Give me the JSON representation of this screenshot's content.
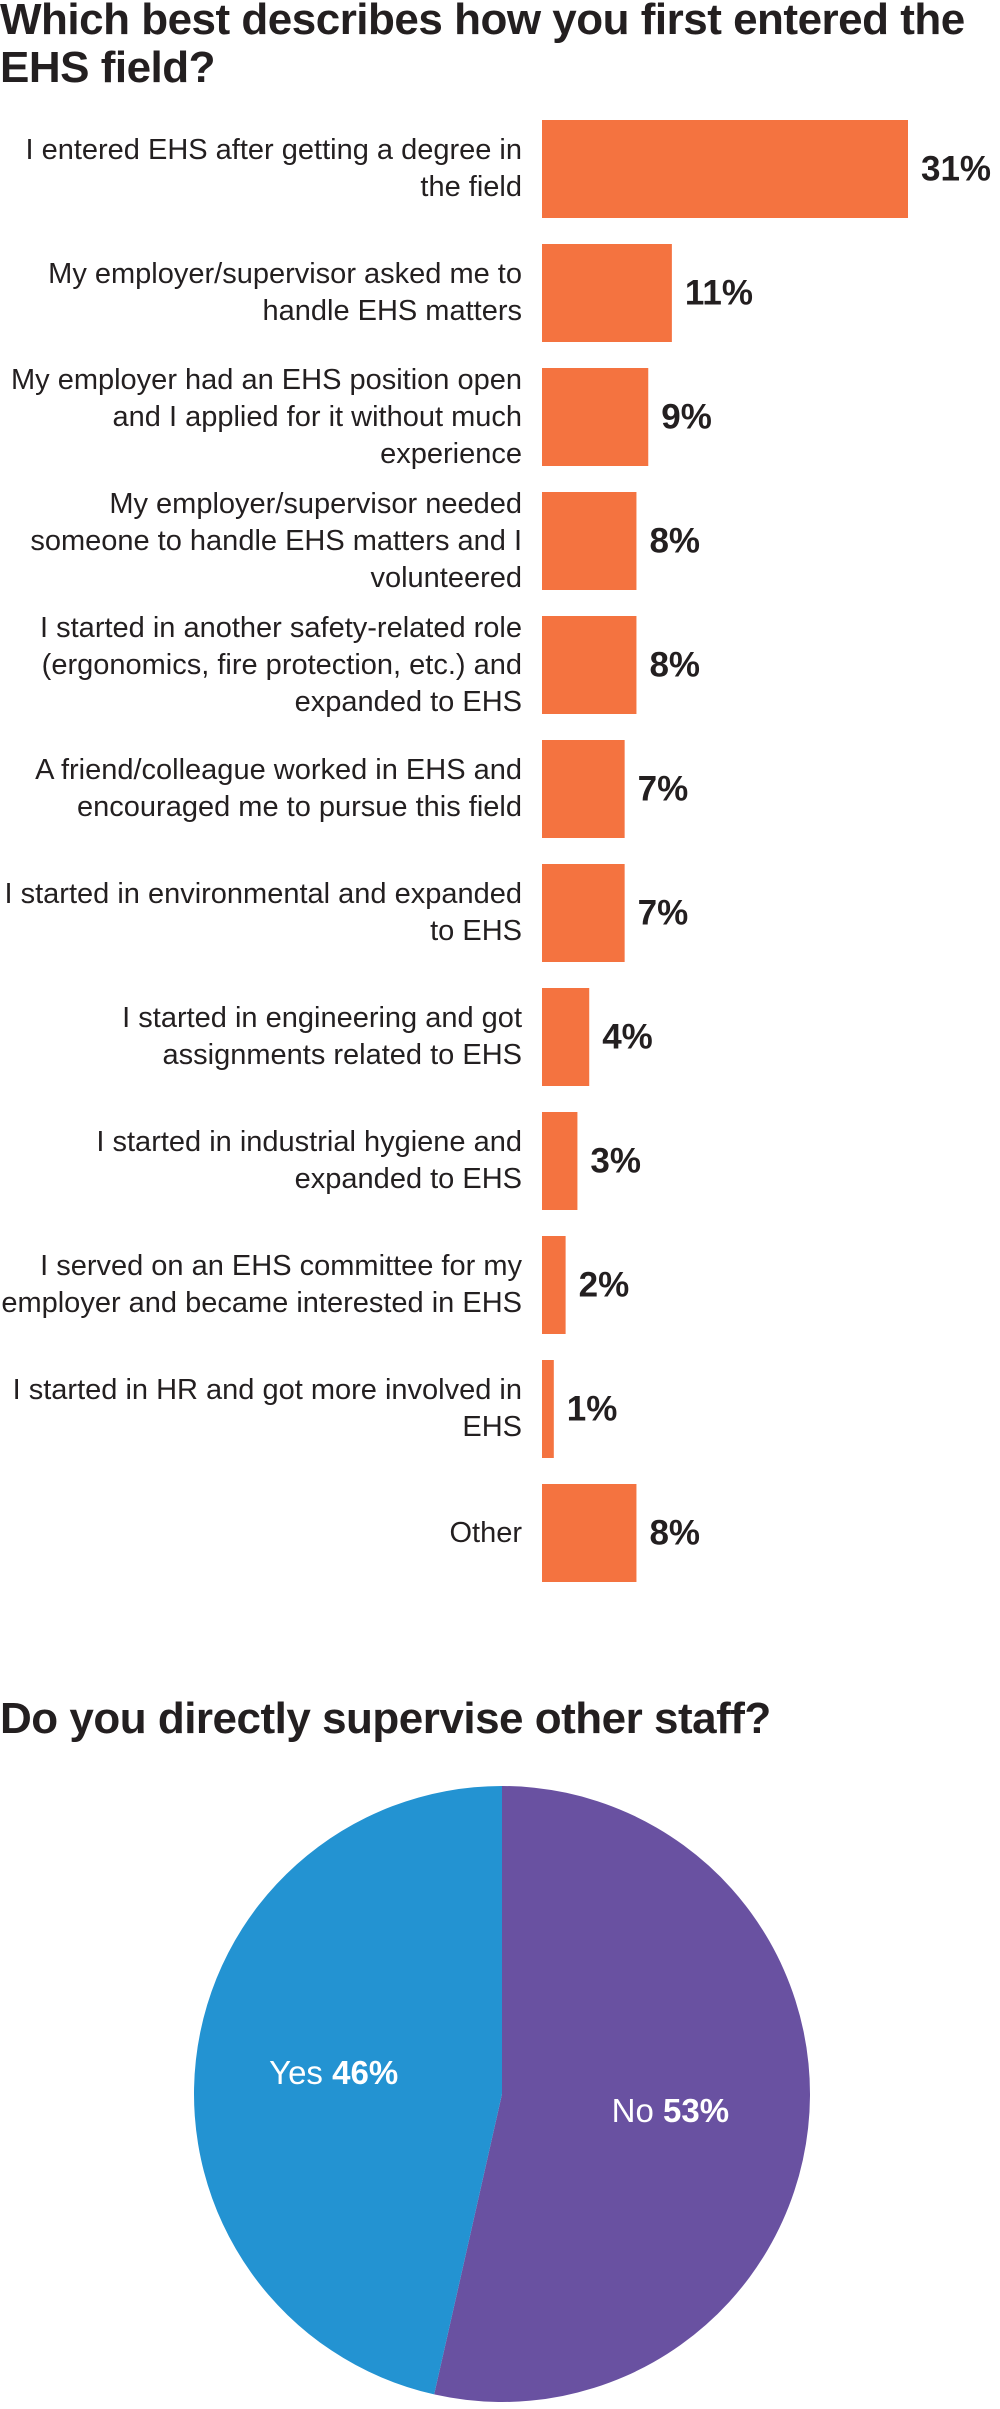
{
  "chart_data": [
    {
      "type": "bar",
      "orientation": "horizontal",
      "title": "Which best describes how you first entered the EHS field?",
      "categories": [
        "I entered EHS after getting a degree in the field",
        "My employer/supervisor asked me to handle EHS matters",
        "My employer had an EHS position open and I applied for it without much experience",
        "My employer/supervisor needed someone to handle EHS matters and I volunteered",
        "I started in another safety-related role (ergonomics, fire protection, etc.) and expanded to EHS",
        "A friend/colleague worked in EHS and encouraged me to pursue this field",
        "I started in environmental and expanded to EHS",
        "I started in engineering and got assignments related to EHS",
        "I started in industrial hygiene and expanded to EHS",
        "I served on an EHS committee for my employer and became interested in EHS",
        "I started in HR and got more involved in EHS",
        "Other"
      ],
      "values": [
        31,
        11,
        9,
        8,
        8,
        7,
        7,
        4,
        3,
        2,
        1,
        8
      ],
      "value_labels": [
        "31%",
        "11%",
        "9%",
        "8%",
        "8%",
        "7%",
        "7%",
        "4%",
        "3%",
        "2%",
        "1%",
        "8%"
      ],
      "color": "#f47340"
    },
    {
      "type": "pie",
      "title": "Do you directly supervise other staff?",
      "categories": [
        "Yes",
        "No"
      ],
      "values": [
        46,
        53
      ],
      "value_labels": [
        "46%",
        "53%"
      ],
      "colors": [
        "#2393d2",
        "#6951a1"
      ]
    }
  ]
}
